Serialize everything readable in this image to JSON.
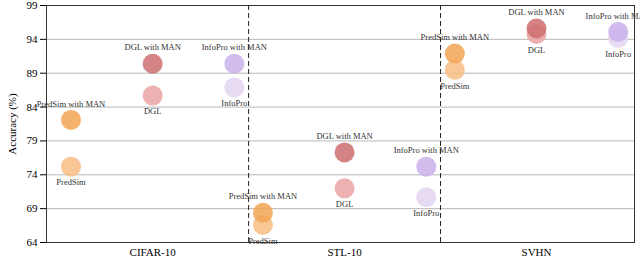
{
  "chart_data": {
    "type": "scatter",
    "y_label": "Accuracy (%)",
    "categories": [
      "CIFAR-10",
      "STL-10",
      "SVHN"
    ],
    "series": [
      {
        "name": "PredSim",
        "color": "#f7bd82",
        "marker": "circle",
        "values": [
          75.2,
          66.6,
          89.5
        ]
      },
      {
        "name": "PredSim with MAN",
        "color": "#f2a554",
        "marker": "circle",
        "values": [
          82.1,
          68.4,
          91.9
        ]
      },
      {
        "name": "DGL",
        "color": "#eba3a3",
        "marker": "circle",
        "values": [
          85.7,
          72.0,
          94.8
        ]
      },
      {
        "name": "DGL with MAN",
        "color": "#cc6e70",
        "marker": "circle",
        "values": [
          90.4,
          77.3,
          95.6
        ]
      },
      {
        "name": "InfoPro",
        "color": "#e3d5f2",
        "marker": "circle",
        "values": [
          86.9,
          70.7,
          94.2
        ]
      },
      {
        "name": "InfoPro with MAN",
        "color": "#c9b0ea",
        "marker": "circle",
        "values": [
          90.4,
          75.2,
          95.1
        ]
      }
    ],
    "ylim": [
      64,
      99
    ],
    "yticks": [
      64,
      69,
      74,
      79,
      84,
      89,
      94,
      99
    ],
    "grid": true
  }
}
